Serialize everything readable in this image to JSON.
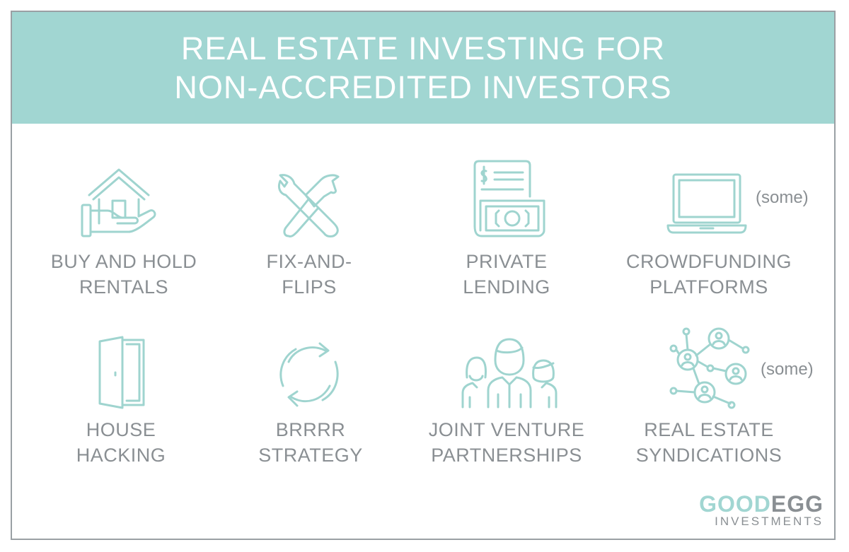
{
  "header": {
    "title_line1": "REAL ESTATE INVESTING FOR",
    "title_line2": "NON-ACCREDITED INVESTORS",
    "background": "#a1d6d2"
  },
  "items": [
    {
      "icon": "house-in-hand-icon",
      "line1": "BUY AND HOLD",
      "line2": "RENTALS",
      "note": ""
    },
    {
      "icon": "wrench-hammer-icon",
      "line1": "FIX-AND-",
      "line2": "FLIPS",
      "note": ""
    },
    {
      "icon": "invoice-cash-icon",
      "line1": "PRIVATE",
      "line2": "LENDING",
      "note": ""
    },
    {
      "icon": "laptop-icon",
      "line1": "CROWDFUNDING",
      "line2": "PLATFORMS",
      "note": "(some)"
    },
    {
      "icon": "door-icon",
      "line1": "HOUSE",
      "line2": "HACKING",
      "note": ""
    },
    {
      "icon": "refresh-cycle-icon",
      "line1": "BRRRR",
      "line2": "STRATEGY",
      "note": ""
    },
    {
      "icon": "team-people-icon",
      "line1": "JOINT VENTURE",
      "line2": "PARTNERSHIPS",
      "note": ""
    },
    {
      "icon": "network-people-icon",
      "line1": "REAL ESTATE",
      "line2": "SYNDICATIONS",
      "note": "(some)"
    }
  ],
  "logo": {
    "part1": "GOOD",
    "part2": "EGG",
    "sub": "INVESTMENTS"
  },
  "colors": {
    "accent": "#a1d6d2",
    "icon_stroke": "#9fd4cf",
    "text": "#8a8f93"
  }
}
